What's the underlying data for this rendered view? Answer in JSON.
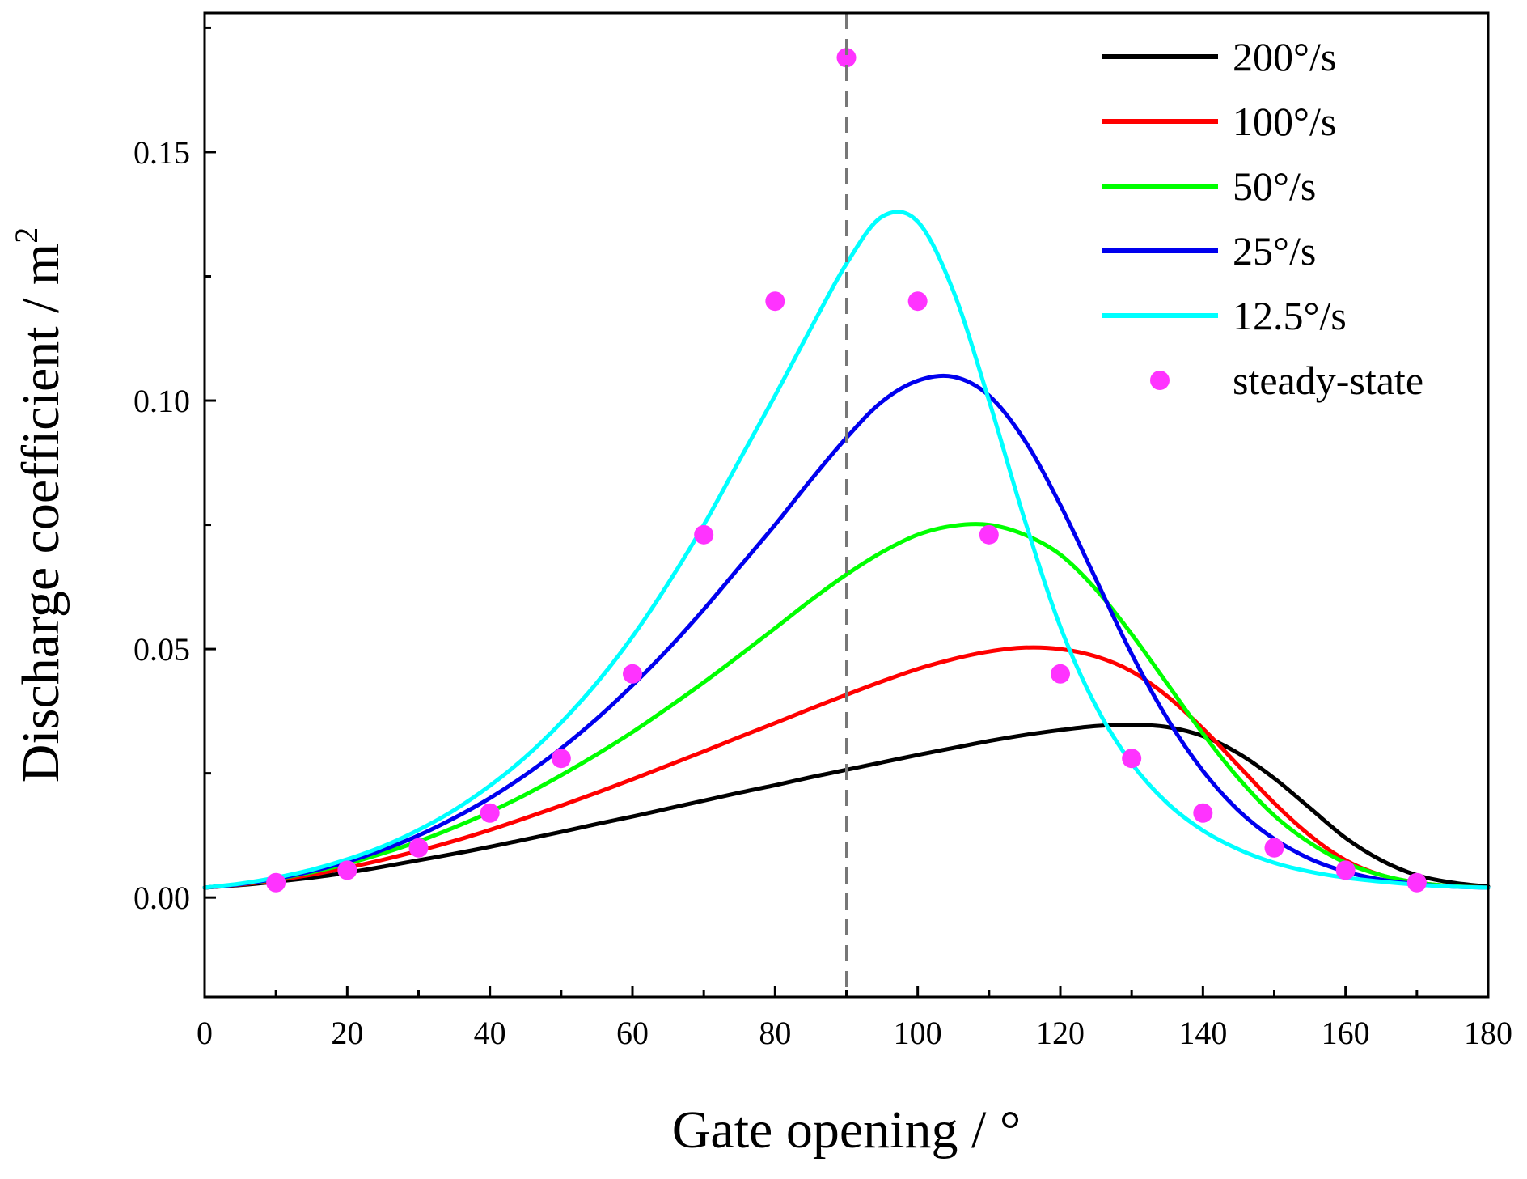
{
  "chart_data": {
    "type": "line",
    "title": "",
    "xlabel": "Gate opening / °",
    "ylabel_main": "Discharge coefficient / m",
    "ylabel_sup": "2",
    "xlim": [
      0,
      180
    ],
    "ylim": [
      -0.02,
      0.178
    ],
    "xticks": [
      0,
      20,
      40,
      60,
      80,
      100,
      120,
      140,
      160,
      180
    ],
    "xtick_labels": [
      "0",
      "20",
      "40",
      "60",
      "80",
      "100",
      "120",
      "140",
      "160",
      "180"
    ],
    "yticks": [
      0.0,
      0.05,
      0.1,
      0.15
    ],
    "ytick_labels": [
      "0.00",
      "0.05",
      "0.10",
      "0.15"
    ],
    "reference_line_x": 90,
    "legend_position": "top-right",
    "x": [
      0,
      5,
      10,
      15,
      20,
      25,
      30,
      35,
      40,
      45,
      50,
      55,
      60,
      65,
      70,
      75,
      80,
      85,
      90,
      95,
      100,
      105,
      110,
      115,
      120,
      125,
      130,
      135,
      140,
      145,
      150,
      155,
      160,
      165,
      170,
      175,
      180
    ],
    "series": [
      {
        "name": "200°/s",
        "color": "#000000",
        "values": [
          0.002,
          0.0025,
          0.0032,
          0.004,
          0.005,
          0.0062,
          0.0075,
          0.0088,
          0.0102,
          0.0117,
          0.0132,
          0.0148,
          0.0163,
          0.0179,
          0.0195,
          0.0211,
          0.0226,
          0.0242,
          0.0257,
          0.0272,
          0.0287,
          0.0301,
          0.0315,
          0.0327,
          0.0337,
          0.0345,
          0.0348,
          0.0343,
          0.0325,
          0.029,
          0.024,
          0.018,
          0.012,
          0.0075,
          0.0045,
          0.003,
          0.0022
        ]
      },
      {
        "name": "100°/s",
        "color": "#ff0000",
        "values": [
          0.002,
          0.0026,
          0.0035,
          0.0046,
          0.006,
          0.0076,
          0.0094,
          0.0114,
          0.0136,
          0.016,
          0.0185,
          0.0211,
          0.0238,
          0.0266,
          0.0294,
          0.0323,
          0.0351,
          0.038,
          0.0408,
          0.0435,
          0.046,
          0.048,
          0.0495,
          0.0503,
          0.05,
          0.0485,
          0.0455,
          0.0405,
          0.034,
          0.0265,
          0.019,
          0.0125,
          0.0075,
          0.0045,
          0.003,
          0.0023,
          0.002
        ]
      },
      {
        "name": "50°/s",
        "color": "#00ff00",
        "values": [
          0.002,
          0.0027,
          0.0037,
          0.0051,
          0.0068,
          0.0089,
          0.0113,
          0.0141,
          0.0172,
          0.0207,
          0.0246,
          0.0288,
          0.0333,
          0.0382,
          0.0433,
          0.0487,
          0.0542,
          0.0598,
          0.065,
          0.0695,
          0.073,
          0.0748,
          0.075,
          0.073,
          0.069,
          0.062,
          0.053,
          0.043,
          0.033,
          0.024,
          0.0165,
          0.011,
          0.007,
          0.0045,
          0.003,
          0.0023,
          0.002
        ]
      },
      {
        "name": "25°/s",
        "color": "#0000ee",
        "values": [
          0.002,
          0.0027,
          0.0038,
          0.0053,
          0.0072,
          0.0096,
          0.0125,
          0.016,
          0.02,
          0.0247,
          0.03,
          0.036,
          0.0427,
          0.05,
          0.058,
          0.0665,
          0.075,
          0.084,
          0.0925,
          0.0998,
          0.104,
          0.1048,
          0.101,
          0.092,
          0.079,
          0.064,
          0.049,
          0.036,
          0.0255,
          0.0175,
          0.0118,
          0.0078,
          0.0052,
          0.0036,
          0.0027,
          0.0022,
          0.002
        ]
      },
      {
        "name": "12.5°/s",
        "color": "#00ffff",
        "values": [
          0.002,
          0.0028,
          0.004,
          0.0056,
          0.0077,
          0.0103,
          0.0136,
          0.0176,
          0.0225,
          0.0283,
          0.0352,
          0.0432,
          0.0525,
          0.0632,
          0.075,
          0.088,
          0.101,
          0.1145,
          0.1275,
          0.137,
          0.136,
          0.122,
          0.1,
          0.076,
          0.0545,
          0.0385,
          0.027,
          0.019,
          0.0135,
          0.0097,
          0.007,
          0.0052,
          0.004,
          0.0032,
          0.0026,
          0.0022,
          0.002
        ]
      }
    ],
    "scatter": {
      "name": "steady-state",
      "color": "#ff33ff",
      "x": [
        10,
        20,
        30,
        40,
        50,
        60,
        70,
        80,
        90,
        100,
        110,
        120,
        130,
        140,
        150,
        160,
        170
      ],
      "y": [
        0.003,
        0.0055,
        0.01,
        0.017,
        0.028,
        0.045,
        0.073,
        0.12,
        0.169,
        0.12,
        0.073,
        0.045,
        0.028,
        0.017,
        0.01,
        0.0055,
        0.003
      ]
    }
  }
}
